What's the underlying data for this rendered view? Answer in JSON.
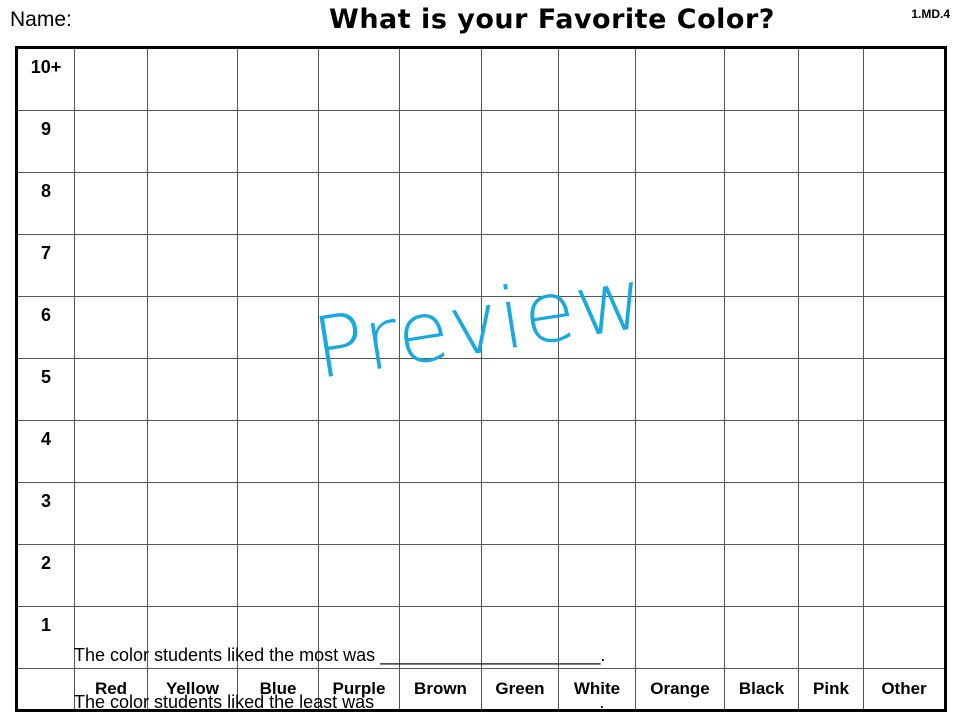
{
  "header": {
    "name_label": "Name:",
    "title": "What is your Favorite Color?",
    "standard": "1.MD.4"
  },
  "graph": {
    "y_labels": [
      "10+",
      "9",
      "8",
      "7",
      "6",
      "5",
      "4",
      "3",
      "2",
      "1"
    ],
    "categories": [
      "Red",
      "Yellow",
      "Blue",
      "Purple",
      "Brown",
      "Green",
      "White",
      "Orange",
      "Black",
      "Pink",
      "Other"
    ]
  },
  "watermark": "Preview",
  "watermark_color": "#1aa8e0",
  "questions": [
    "The color students liked the most was ______________________.",
    "The color students liked the least was ______________________."
  ]
}
